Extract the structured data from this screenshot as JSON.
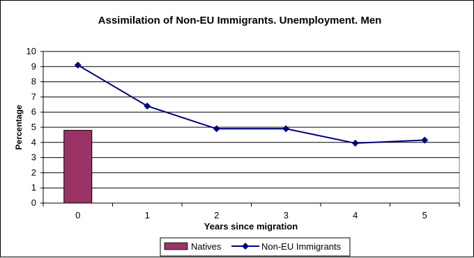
{
  "chart_data": {
    "type": "bar+line",
    "title": "Assimilation of Non-EU Immigrants. Unemployment.  Men",
    "xlabel": "Years since migration",
    "ylabel": "Percentage",
    "categories": [
      "0",
      "1",
      "2",
      "3",
      "4",
      "5"
    ],
    "ylim": [
      0,
      10
    ],
    "yticks": [
      "0",
      "1",
      "2",
      "3",
      "4",
      "5",
      "6",
      "7",
      "8",
      "9",
      "10"
    ],
    "grid": true,
    "legend_position": "bottom",
    "series": [
      {
        "name": "Natives",
        "type": "bar",
        "color": "#993366",
        "values": [
          4.8,
          null,
          null,
          null,
          null,
          null
        ]
      },
      {
        "name": "Non-EU Immigrants",
        "type": "line",
        "color": "#000080",
        "marker": "diamond",
        "values": [
          9.1,
          6.4,
          4.9,
          4.9,
          3.95,
          4.15
        ]
      }
    ]
  }
}
